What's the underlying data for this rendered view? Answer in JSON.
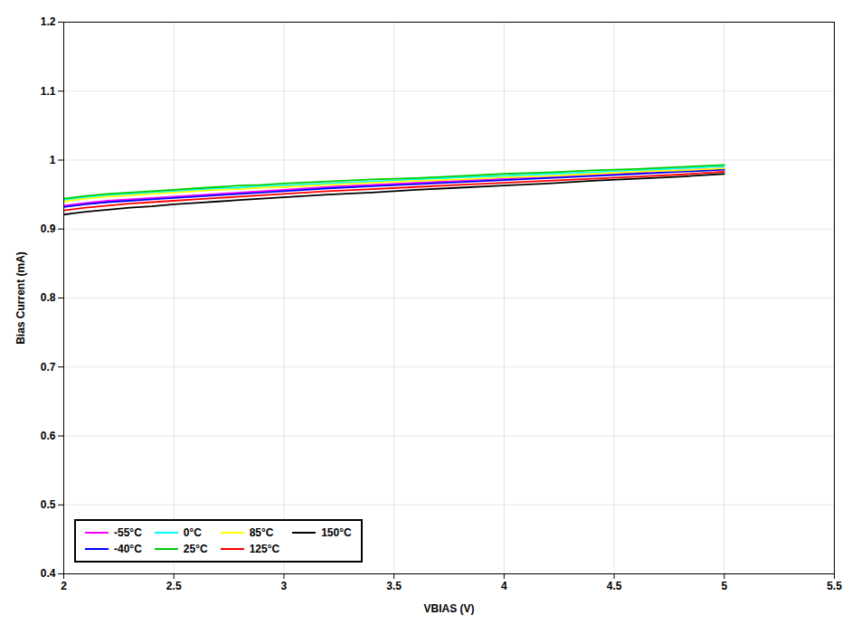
{
  "chart_data": {
    "type": "line",
    "xlabel": "VBIAS (V)",
    "ylabel": "Bias Current (mA)",
    "xlim": [
      2,
      5.5
    ],
    "ylim": [
      0.4,
      1.2
    ],
    "xticks": [
      2,
      2.5,
      3,
      3.5,
      4,
      4.5,
      5,
      5.5
    ],
    "yticks": [
      0.4,
      0.5,
      0.6,
      0.7,
      0.8,
      0.9,
      1,
      1.1,
      1.2
    ],
    "grid": true,
    "legend": "lower left",
    "x": [
      2.0,
      2.05,
      2.1,
      2.2,
      2.3,
      2.4,
      2.5,
      2.6,
      2.7,
      2.8,
      2.9,
      3.0,
      3.2,
      3.4,
      3.6,
      3.8,
      4.0,
      4.2,
      4.4,
      4.6,
      4.8,
      5.0
    ],
    "series": [
      {
        "name": "-55°C",
        "color": "#FF00FF",
        "values": [
          0.934,
          0.936,
          0.938,
          0.941,
          0.943,
          0.945,
          0.947,
          0.949,
          0.951,
          0.953,
          0.955,
          0.957,
          0.961,
          0.964,
          0.967,
          0.97,
          0.973,
          0.976,
          0.979,
          0.982,
          0.985,
          0.988
        ]
      },
      {
        "name": "-40°C",
        "color": "#0000FF",
        "values": [
          0.932,
          0.934,
          0.936,
          0.939,
          0.941,
          0.943,
          0.945,
          0.947,
          0.949,
          0.951,
          0.953,
          0.955,
          0.959,
          0.962,
          0.965,
          0.968,
          0.971,
          0.974,
          0.977,
          0.98,
          0.983,
          0.986
        ]
      },
      {
        "name": "0°C",
        "color": "#00FFFF",
        "values": [
          0.942,
          0.944,
          0.946,
          0.949,
          0.951,
          0.953,
          0.955,
          0.957,
          0.959,
          0.96,
          0.962,
          0.963,
          0.966,
          0.969,
          0.972,
          0.975,
          0.977,
          0.98,
          0.982,
          0.985,
          0.988,
          0.991
        ]
      },
      {
        "name": "25°C",
        "color": "#00CC00",
        "values": [
          0.944,
          0.946,
          0.948,
          0.951,
          0.953,
          0.955,
          0.957,
          0.959,
          0.961,
          0.963,
          0.964,
          0.966,
          0.969,
          0.972,
          0.974,
          0.977,
          0.98,
          0.982,
          0.985,
          0.987,
          0.99,
          0.993
        ]
      },
      {
        "name": "85°C",
        "color": "#FFFF00",
        "values": [
          0.94,
          0.942,
          0.944,
          0.947,
          0.949,
          0.951,
          0.953,
          0.955,
          0.957,
          0.958,
          0.96,
          0.961,
          0.964,
          0.967,
          0.97,
          0.972,
          0.975,
          0.977,
          0.98,
          0.983,
          0.985,
          0.988
        ]
      },
      {
        "name": "125°C",
        "color": "#FF0000",
        "values": [
          0.927,
          0.929,
          0.931,
          0.934,
          0.937,
          0.939,
          0.941,
          0.943,
          0.945,
          0.947,
          0.949,
          0.951,
          0.955,
          0.958,
          0.961,
          0.964,
          0.967,
          0.97,
          0.973,
          0.976,
          0.979,
          0.983
        ]
      },
      {
        "name": "150°C",
        "color": "#000000",
        "values": [
          0.921,
          0.923,
          0.925,
          0.928,
          0.931,
          0.933,
          0.936,
          0.938,
          0.94,
          0.942,
          0.944,
          0.946,
          0.95,
          0.953,
          0.957,
          0.96,
          0.963,
          0.966,
          0.97,
          0.973,
          0.976,
          0.98
        ]
      }
    ]
  }
}
